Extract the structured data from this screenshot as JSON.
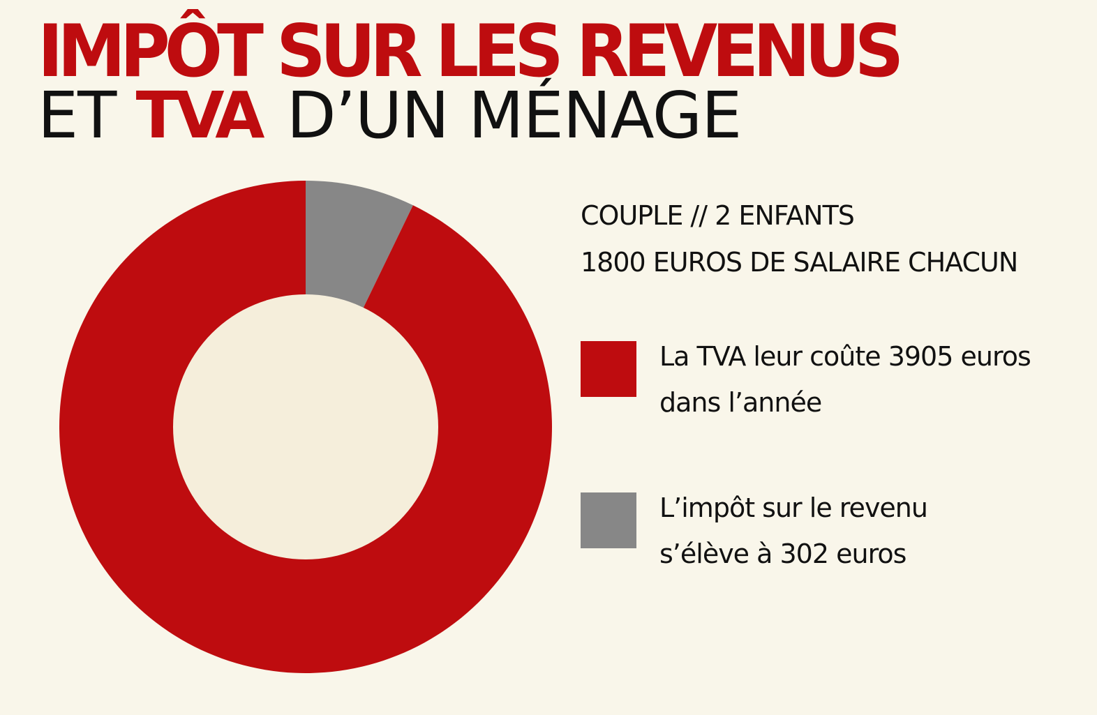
{
  "colors": {
    "background": "#f9f6ea",
    "tva_red": "#be0c0f",
    "impot_gray": "#878787",
    "donut_hole": "#f5eedb",
    "text_dark": "#111111"
  },
  "title": {
    "line1": "IMPÔT SUR LES REVENUS",
    "line2_prefix": "ET",
    "line2_accent": "TVA",
    "line2_suffix": "D’UN MÉNAGE"
  },
  "subtitle": {
    "line1": "COUPLE // 2 ENFANTS",
    "line2": "1800 EUROS DE SALAIRE CHACUN"
  },
  "legend": [
    {
      "line1": "La TVA leur coûte 3905 euros",
      "line2": "dans l’année",
      "color_key": "tva_red"
    },
    {
      "line1": "L’impôt sur le revenu",
      "line2": "s’élève à 302 euros",
      "color_key": "impot_gray"
    }
  ],
  "chart_data": {
    "type": "pie",
    "donut": true,
    "start": "top",
    "direction": "clockwise",
    "slices": [
      {
        "label": "L’impôt sur le revenu",
        "value": 302,
        "color": "#878787"
      },
      {
        "label": "La TVA",
        "value": 3905,
        "color": "#be0c0f"
      }
    ]
  }
}
